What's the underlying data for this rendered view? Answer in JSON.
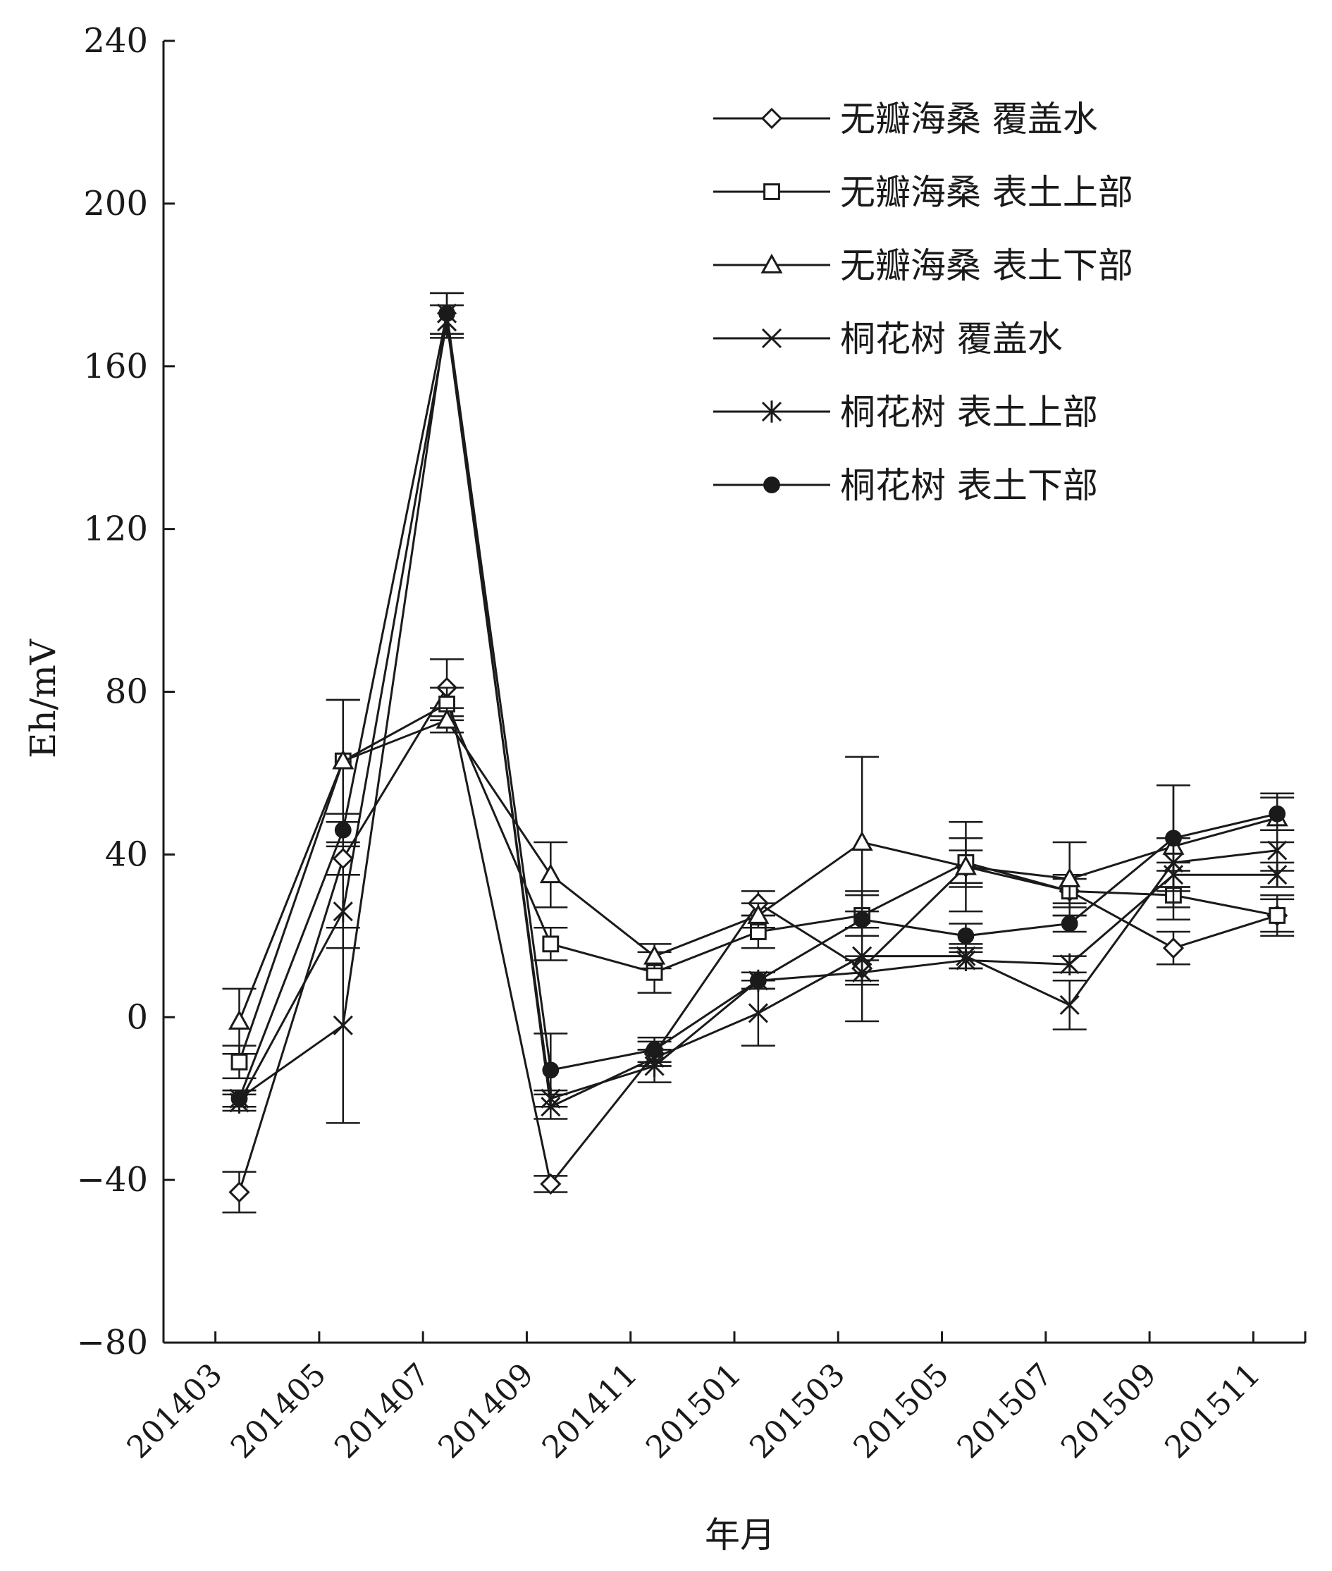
{
  "chart_data": {
    "type": "line",
    "title": "",
    "xlabel": "年月",
    "ylabel": "Eh/mV",
    "ylim": [
      -80,
      240
    ],
    "yticks": [
      -80,
      -40,
      0,
      40,
      80,
      120,
      160,
      200,
      240
    ],
    "xtick_labels": [
      "201403",
      "201405",
      "201407",
      "201409",
      "201411",
      "201501",
      "201503",
      "201505",
      "201507",
      "201509",
      "201511"
    ],
    "x": [
      "201404",
      "201406",
      "201408",
      "201410",
      "201412",
      "201502",
      "201504",
      "201506",
      "201508",
      "201510",
      "201512"
    ],
    "legend_position": "top-right",
    "grid": false,
    "series": [
      {
        "name": "无瓣海桑 覆盖水",
        "marker": "diamond-open",
        "values": [
          -43,
          39,
          81,
          -41,
          -9,
          28,
          12,
          37,
          31,
          17,
          25
        ],
        "errors": [
          5,
          4,
          7,
          2,
          3,
          3,
          3,
          4,
          3,
          4,
          4
        ]
      },
      {
        "name": "无瓣海桑 表土上部",
        "marker": "square-open",
        "values": [
          -11,
          63,
          77,
          18,
          11,
          21,
          25,
          38,
          31,
          30,
          25
        ],
        "errors": [
          4,
          15,
          4,
          4,
          5,
          4,
          5,
          6,
          4,
          6,
          5
        ]
      },
      {
        "name": "无瓣海桑 表土下部",
        "marker": "triangle-open",
        "values": [
          -1,
          63,
          73,
          35,
          15,
          25,
          43,
          37,
          34,
          42,
          49
        ],
        "errors": [
          8,
          15,
          3,
          8,
          3,
          3,
          21,
          11,
          9,
          15,
          6
        ]
      },
      {
        "name": "桐花树 覆盖水",
        "marker": "x",
        "values": [
          -20,
          -2,
          173,
          -22,
          -10,
          1,
          15,
          15,
          3,
          38,
          41
        ],
        "errors": [
          2,
          24,
          5,
          3,
          2,
          8,
          16,
          3,
          6,
          6,
          5
        ]
      },
      {
        "name": "桐花树 表土上部",
        "marker": "star",
        "values": [
          -21,
          26,
          171,
          -20,
          -12,
          9,
          11,
          14,
          13,
          35,
          35
        ],
        "errors": [
          2,
          9,
          4,
          2,
          4,
          2,
          3,
          2,
          2,
          3,
          3
        ]
      },
      {
        "name": "桐花树 表土下部",
        "marker": "circle-filled",
        "values": [
          -20,
          46,
          173,
          -13,
          -8,
          9,
          24,
          20,
          23,
          44,
          50
        ],
        "errors": [
          2,
          4,
          5,
          9,
          3,
          2,
          2,
          3,
          2,
          13,
          4
        ]
      }
    ]
  }
}
